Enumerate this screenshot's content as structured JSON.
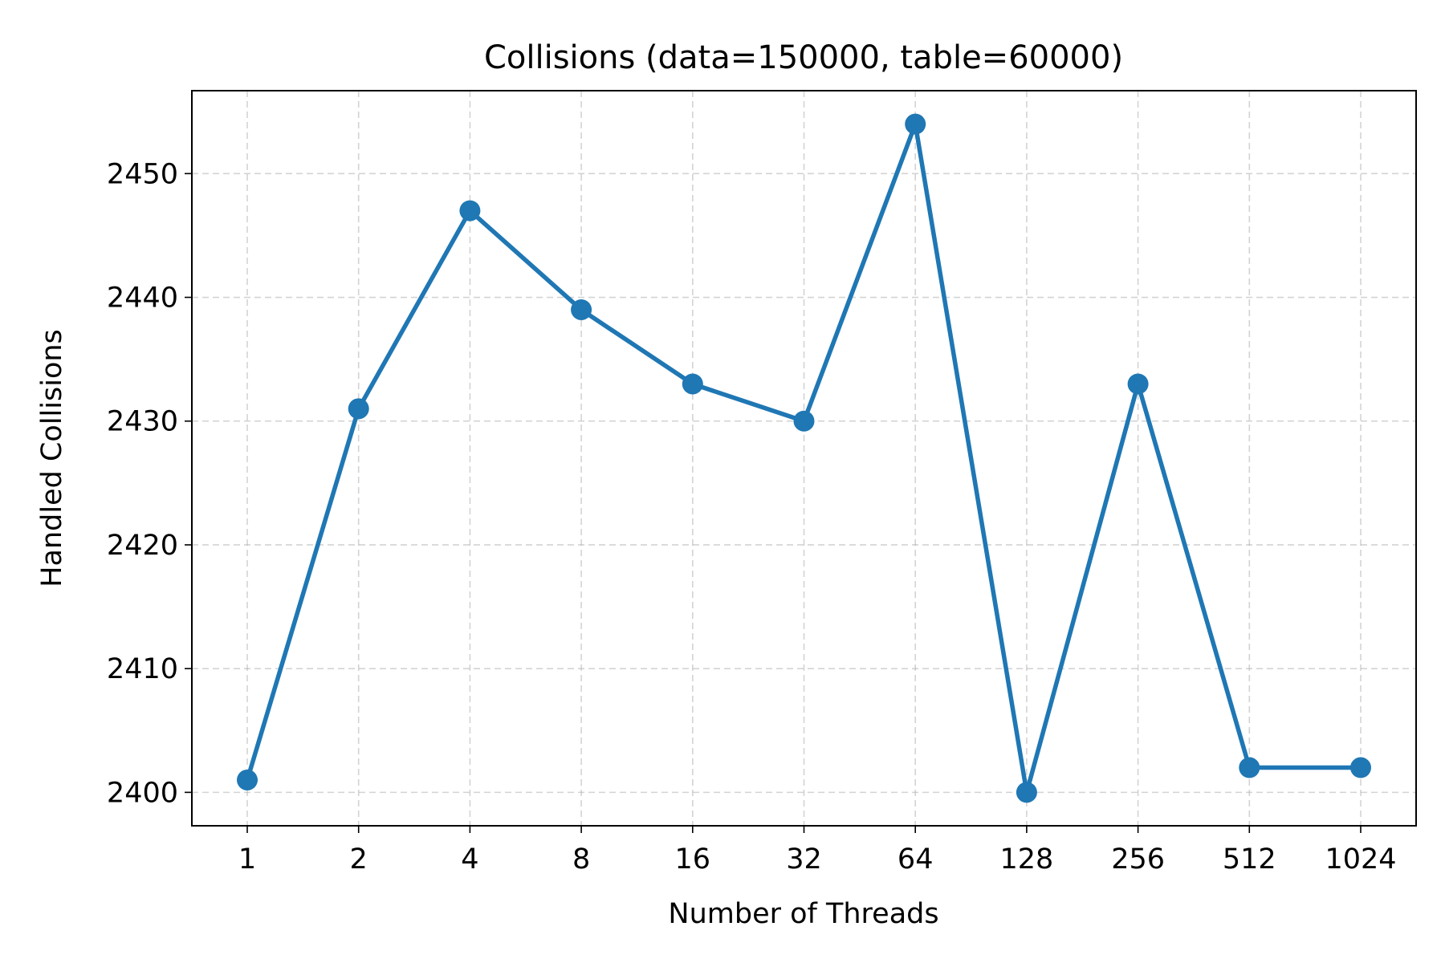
{
  "chart_data": {
    "type": "line",
    "title": "Collisions (data=150000, table=60000)",
    "xlabel": "Number of Threads",
    "ylabel": "Handled Collisions",
    "categories": [
      "1",
      "2",
      "4",
      "8",
      "16",
      "32",
      "64",
      "128",
      "256",
      "512",
      "1024"
    ],
    "series": [
      {
        "values": [
          2401,
          2431,
          2447,
          2439,
          2433,
          2430,
          2454,
          2400,
          2433,
          2402,
          2402
        ],
        "color": "#1f77b4",
        "marker": "circle"
      }
    ],
    "ylim": [
      2397.3,
      2456.7
    ],
    "yticks": [
      2400,
      2410,
      2420,
      2430,
      2440,
      2450
    ],
    "grid": true,
    "legend": "none"
  }
}
